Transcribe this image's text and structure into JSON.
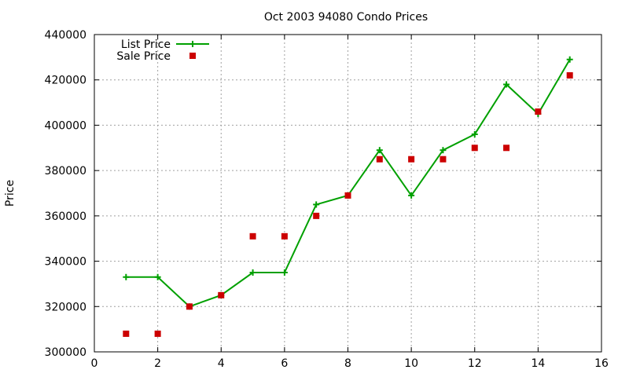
{
  "chart_data": {
    "type": "line",
    "title": "Oct 2003 94080 Condo Prices",
    "xlabel": "",
    "ylabel": "Price",
    "xlim": [
      0,
      16
    ],
    "ylim": [
      300000,
      440000
    ],
    "xticks": [
      0,
      2,
      4,
      6,
      8,
      10,
      12,
      14,
      16
    ],
    "yticks": [
      300000,
      320000,
      340000,
      360000,
      380000,
      400000,
      420000,
      440000
    ],
    "grid": true,
    "legend_position": "top-left",
    "series": [
      {
        "name": "List Price",
        "style": "line-with-plus-markers",
        "color": "#00a000",
        "x": [
          1,
          2,
          3,
          4,
          5,
          6,
          7,
          8,
          9,
          10,
          11,
          12,
          13,
          14,
          15
        ],
        "y": [
          333000,
          333000,
          320000,
          325000,
          335000,
          335000,
          365000,
          369000,
          389000,
          369000,
          389000,
          396000,
          418000,
          405000,
          429000
        ]
      },
      {
        "name": "Sale Price",
        "style": "square-markers",
        "color": "#cc0000",
        "x": [
          1,
          2,
          3,
          4,
          5,
          6,
          7,
          8,
          9,
          10,
          11,
          12,
          13,
          14,
          15
        ],
        "y": [
          308000,
          308000,
          320000,
          325000,
          351000,
          351000,
          360000,
          369000,
          385000,
          385000,
          385000,
          390000,
          390000,
          406000,
          422000
        ]
      }
    ]
  }
}
